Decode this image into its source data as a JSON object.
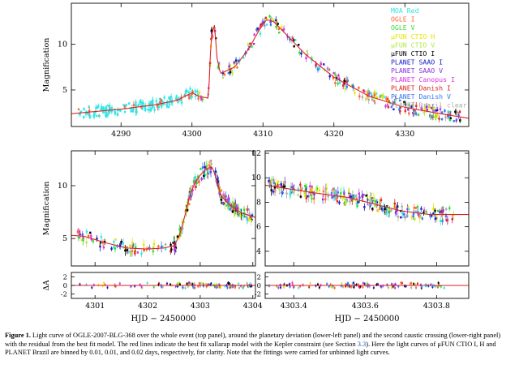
{
  "caption": {
    "label": "Figure 1.",
    "text": "Light curve of OGLE-2007-BLG-368 over the whole event (top panel), around the planetary deviation (lower-left panel) and the second caustic crossing (lower-right panel) with the residual from the best fit model. The red lines indicate the best fit xallarap model with the Kepler constraint (see Section ",
    "section_ref": "3.3",
    "text_after": "). Here the light curves of μFUN CTIO I, H and PLANET Brazil are binned by 0.01, 0.01, and 0.02 days, respectively, for clarity. Note that the fittings were carried for unbinned light curves."
  },
  "legend": [
    {
      "name": "MOA Red",
      "color": "#33e5e5"
    },
    {
      "name": "OGLE I",
      "color": "#ff6633"
    },
    {
      "name": "OGLE V",
      "color": "#33dd33"
    },
    {
      "name": "μFUN CTIO H",
      "color": "#e6e600"
    },
    {
      "name": "μFUN CTIO V",
      "color": "#b3e64d"
    },
    {
      "name": "μFUN CTIO I",
      "color": "#000000"
    },
    {
      "name": "PLANET SAAO I",
      "color": "#1a1acc"
    },
    {
      "name": "PLANET SAAO V",
      "color": "#8833dd"
    },
    {
      "name": "PLANET Canopus I",
      "color": "#dd33dd"
    },
    {
      "name": "PLANET Danish I",
      "color": "#dd2222"
    },
    {
      "name": "PLANET Danish V",
      "color": "#3377ee"
    },
    {
      "name": "PLANET Brazil clear",
      "color": "#aaaaaa"
    }
  ],
  "model_color": "#dd2222",
  "chart_data": [
    {
      "type": "scatter",
      "panel": "top",
      "ylabel": "Magnification",
      "xlim": [
        4283,
        4339
      ],
      "ylim": [
        1,
        14.5
      ],
      "xticks": [
        4290,
        4300,
        4310,
        4320,
        4330
      ],
      "yticks": [
        5,
        10
      ],
      "model_x": [
        4283,
        4290,
        4295,
        4298,
        4300,
        4301,
        4302.3,
        4302.4,
        4302.7,
        4303.2,
        4303.5,
        4304,
        4306,
        4308,
        4309.5,
        4310.5,
        4311.5,
        4313,
        4316,
        4320,
        4325,
        4330,
        4335,
        4339
      ],
      "model_y": [
        2.4,
        2.9,
        3.4,
        3.9,
        4.7,
        4.3,
        4.1,
        5.5,
        10.8,
        12.2,
        8.6,
        6.8,
        7.5,
        9.5,
        11.6,
        12.7,
        12.5,
        11.3,
        8.9,
        6.4,
        4.3,
        3.1,
        2.4,
        1.9
      ],
      "data_label_hint": "many observations from 12 telescopes"
    },
    {
      "type": "scatter",
      "panel": "lower-left",
      "ylabel": "Magnification",
      "xlabel": "HJD − 2450000",
      "xlim": [
        4300.55,
        4304.05
      ],
      "ylim": [
        2.4,
        13.3
      ],
      "xticks": [
        4301,
        4302,
        4303,
        4304
      ],
      "yticks": [
        5,
        10
      ],
      "model_x": [
        4300.55,
        4300.8,
        4301.2,
        4301.6,
        4302.0,
        4302.3,
        4302.5,
        4302.6,
        4302.7,
        4302.8,
        4302.9,
        4303.0,
        4303.1,
        4303.2,
        4303.25,
        4303.4,
        4303.6,
        4303.8,
        4304.05
      ],
      "model_y": [
        5.3,
        5.2,
        4.6,
        4.1,
        4.0,
        4.1,
        4.3,
        5.2,
        7.0,
        9.0,
        10.3,
        11.0,
        11.5,
        11.8,
        11.5,
        9.0,
        8.0,
        7.4,
        7.0
      ],
      "residual": {
        "ylabel": "ΔA",
        "ylim": [
          -3,
          3
        ],
        "yticks": [
          -2,
          0,
          2
        ]
      }
    },
    {
      "type": "scatter",
      "panel": "lower-right",
      "xlabel": "HJD − 2450000",
      "xlim": [
        4303.32,
        4303.89
      ],
      "ylim": [
        2.8,
        12.2
      ],
      "xticks": [
        4303.4,
        4303.6,
        4303.8
      ],
      "yticks": [
        4,
        6,
        8,
        10,
        12
      ],
      "model_x": [
        4303.32,
        4303.45,
        4303.55,
        4303.62,
        4303.7,
        4303.78,
        4303.89
      ],
      "model_y": [
        9.4,
        8.8,
        8.4,
        7.9,
        7.3,
        7.0,
        7.0
      ],
      "residual": {
        "ylim": [
          -3,
          3
        ],
        "yticks": [
          -2,
          0,
          2
        ]
      }
    }
  ]
}
